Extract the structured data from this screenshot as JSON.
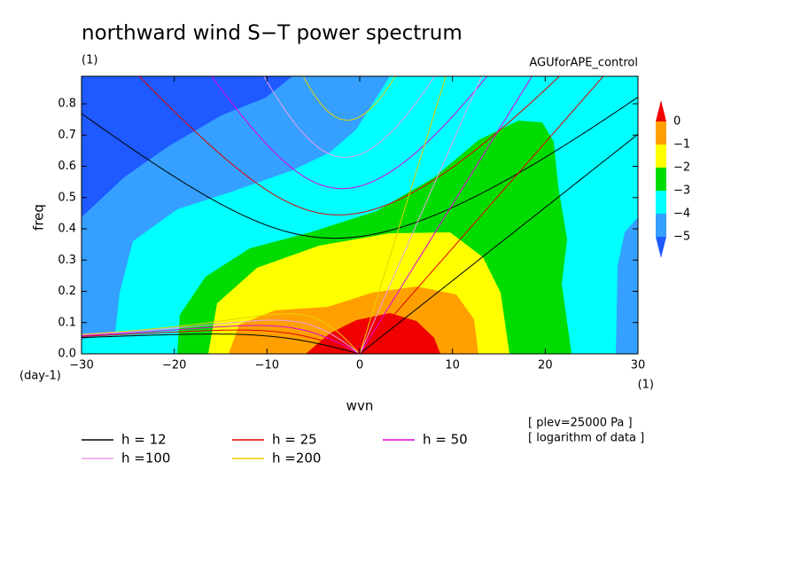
{
  "chart_data": {
    "type": "contour",
    "title": "northward wind S−T power spectrum",
    "subtitle": "(1)",
    "run_name": "AGUforAPE_control",
    "x_label": "wvn",
    "x_unit": "(1)",
    "y_label": "freq",
    "y_unit": "(day-1)",
    "notes": [
      "[ plev=25000 Pa ]",
      "[ logarithm of data ]"
    ],
    "xlim": [
      -30,
      30
    ],
    "xticks": [
      {
        "value": -30,
        "label": "−30"
      },
      {
        "value": -20,
        "label": "−20"
      },
      {
        "value": -10,
        "label": "−10"
      },
      0,
      10,
      20,
      30
    ],
    "ylim": [
      0,
      0.888
    ],
    "yticks": [
      {
        "value": 0,
        "label": "0.0"
      },
      0.1,
      0.2,
      0.3,
      0.4,
      0.5,
      0.6,
      0.7,
      0.8
    ],
    "colorbar": {
      "ticks": [
        0,
        {
          "value": -1,
          "label": "−1"
        },
        {
          "value": -2,
          "label": "−2"
        },
        {
          "value": -3,
          "label": "−3"
        },
        {
          "value": -4,
          "label": "−4"
        },
        {
          "value": -5,
          "label": "−5"
        }
      ],
      "colors": [
        "#f00000",
        "#ffa000",
        "#ffff00",
        "#00dc00",
        "#00ffff",
        "#35a0ff",
        "#1e5aff"
      ]
    },
    "series": [
      {
        "name": "h = 12",
        "color": "#000000",
        "h": 12
      },
      {
        "name": "h = 25",
        "color": "#e00000",
        "h": 25
      },
      {
        "name": "h = 50",
        "color": "#e000e0",
        "h": 50
      },
      {
        "name": "h =100",
        "color": "#e8a0e8",
        "h": 100
      },
      {
        "name": "h =200",
        "color": "#e8d000",
        "h": 200
      }
    ]
  }
}
